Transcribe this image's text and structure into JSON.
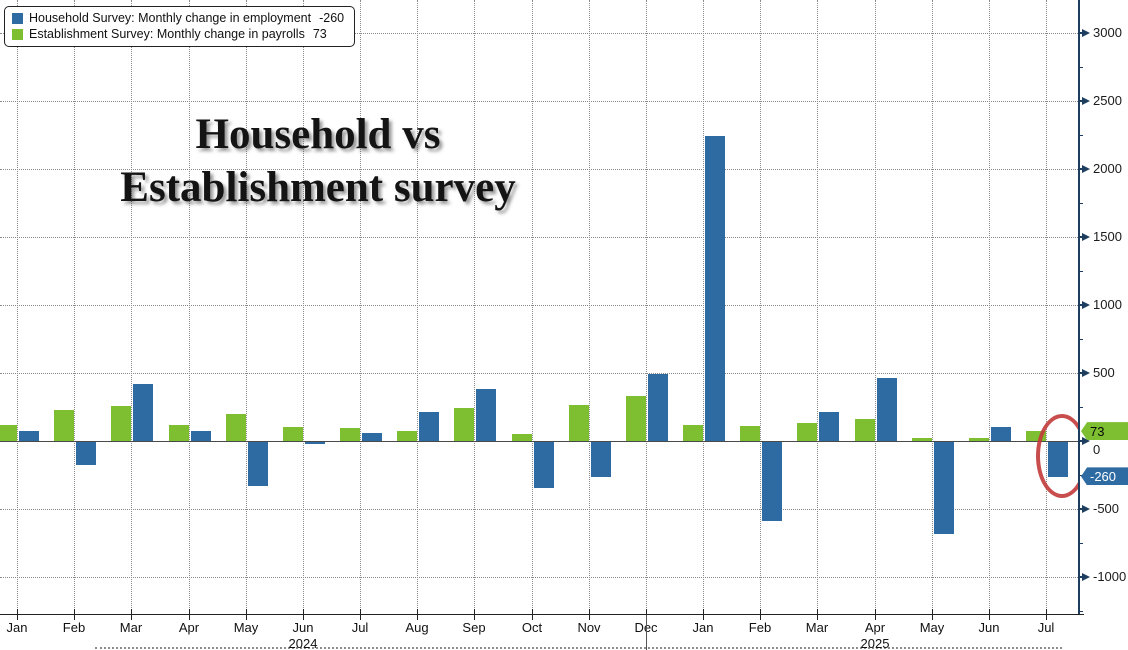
{
  "colors": {
    "household": "#2F6BA3",
    "establishment": "#7DBF30",
    "annotation_red": "#C23B3B",
    "axis": "#1D3E5E"
  },
  "title": {
    "line1": "Household vs",
    "line2": "Establishment survey"
  },
  "legend": {
    "items": [
      {
        "series": "household",
        "label": "Household Survey: Monthly change in employment",
        "value": "-260"
      },
      {
        "series": "establishment",
        "label": "Establishment Survey: Monthly change in payrolls",
        "value": "73"
      }
    ]
  },
  "chart_data": {
    "type": "bar",
    "categories": [
      "Jan",
      "Feb",
      "Mar",
      "Apr",
      "May",
      "Jun",
      "Jul",
      "Aug",
      "Sep",
      "Oct",
      "Nov",
      "Dec",
      "Jan",
      "Feb",
      "Mar",
      "Apr",
      "May",
      "Jun",
      "Jul"
    ],
    "year_labels": [
      {
        "label": "2024",
        "month_index": 5
      },
      {
        "label": "2025",
        "month_index": 15
      }
    ],
    "series": [
      {
        "name": "Household Survey: Monthly change in employment",
        "color_key": "household",
        "values": [
          75,
          -170,
          420,
          70,
          -325,
          -10,
          60,
          215,
          385,
          -335,
          -255,
          490,
          2240,
          -580,
          210,
          460,
          -680,
          100,
          -260
        ]
      },
      {
        "name": "Establishment Survey: Monthly change in payrolls",
        "color_key": "establishment",
        "values": [
          120,
          230,
          255,
          120,
          200,
          100,
          95,
          75,
          240,
          50,
          265,
          330,
          120,
          110,
          130,
          160,
          25,
          25,
          73
        ]
      }
    ],
    "ylabel": "",
    "xlabel": "",
    "ylim": [
      -1250,
      3250
    ],
    "yticks_major": [
      3000,
      2500,
      2000,
      1500,
      1000,
      500,
      0,
      -500,
      -1000
    ],
    "yticks_minor": [
      3250,
      2750,
      2250,
      1750,
      1250,
      750,
      250,
      -250,
      -750,
      -1250
    ],
    "grid": "dotted",
    "legend_position": "top-left",
    "zero_tick_label": "0",
    "last_value_badges": [
      {
        "series": "establishment",
        "text": "73"
      },
      {
        "series": "household",
        "text": "-260"
      }
    ]
  }
}
